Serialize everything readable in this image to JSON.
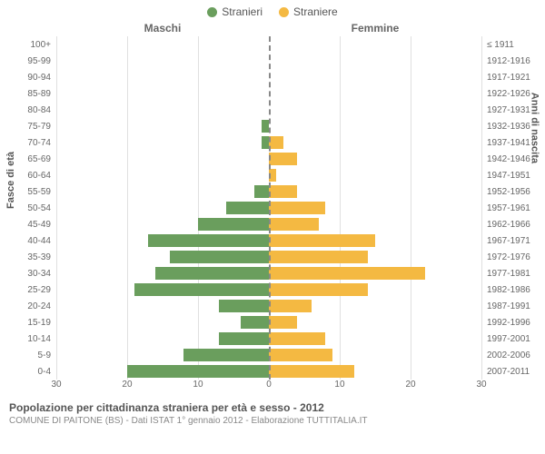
{
  "legend": {
    "male": {
      "label": "Stranieri",
      "color": "#6a9e5d"
    },
    "female": {
      "label": "Straniere",
      "color": "#f4b942"
    }
  },
  "headers": {
    "left": "Maschi",
    "right": "Femmine"
  },
  "axis_titles": {
    "left": "Fasce di età",
    "right": "Anni di nascita"
  },
  "x_axis": {
    "max": 30,
    "ticks": [
      30,
      20,
      10,
      0,
      10,
      20,
      30
    ]
  },
  "grid_color": "#e0e0e0",
  "background_color": "#ffffff",
  "title": "Popolazione per cittadinanza straniera per età e sesso - 2012",
  "subtitle": "COMUNE DI PAITONE (BS) - Dati ISTAT 1° gennaio 2012 - Elaborazione TUTTITALIA.IT",
  "rows": [
    {
      "age": "100+",
      "birth": "≤ 1911",
      "m": 0,
      "f": 0
    },
    {
      "age": "95-99",
      "birth": "1912-1916",
      "m": 0,
      "f": 0
    },
    {
      "age": "90-94",
      "birth": "1917-1921",
      "m": 0,
      "f": 0
    },
    {
      "age": "85-89",
      "birth": "1922-1926",
      "m": 0,
      "f": 0
    },
    {
      "age": "80-84",
      "birth": "1927-1931",
      "m": 0,
      "f": 0
    },
    {
      "age": "75-79",
      "birth": "1932-1936",
      "m": 1,
      "f": 0
    },
    {
      "age": "70-74",
      "birth": "1937-1941",
      "m": 1,
      "f": 2
    },
    {
      "age": "65-69",
      "birth": "1942-1946",
      "m": 0,
      "f": 4
    },
    {
      "age": "60-64",
      "birth": "1947-1951",
      "m": 0,
      "f": 1
    },
    {
      "age": "55-59",
      "birth": "1952-1956",
      "m": 2,
      "f": 4
    },
    {
      "age": "50-54",
      "birth": "1957-1961",
      "m": 6,
      "f": 8
    },
    {
      "age": "45-49",
      "birth": "1962-1966",
      "m": 10,
      "f": 7
    },
    {
      "age": "40-44",
      "birth": "1967-1971",
      "m": 17,
      "f": 15
    },
    {
      "age": "35-39",
      "birth": "1972-1976",
      "m": 14,
      "f": 14
    },
    {
      "age": "30-34",
      "birth": "1977-1981",
      "m": 16,
      "f": 22
    },
    {
      "age": "25-29",
      "birth": "1982-1986",
      "m": 19,
      "f": 14
    },
    {
      "age": "20-24",
      "birth": "1987-1991",
      "m": 7,
      "f": 6
    },
    {
      "age": "15-19",
      "birth": "1992-1996",
      "m": 4,
      "f": 4
    },
    {
      "age": "10-14",
      "birth": "1997-2001",
      "m": 7,
      "f": 8
    },
    {
      "age": "5-9",
      "birth": "2002-2006",
      "m": 12,
      "f": 9
    },
    {
      "age": "0-4",
      "birth": "2007-2011",
      "m": 20,
      "f": 12
    }
  ]
}
